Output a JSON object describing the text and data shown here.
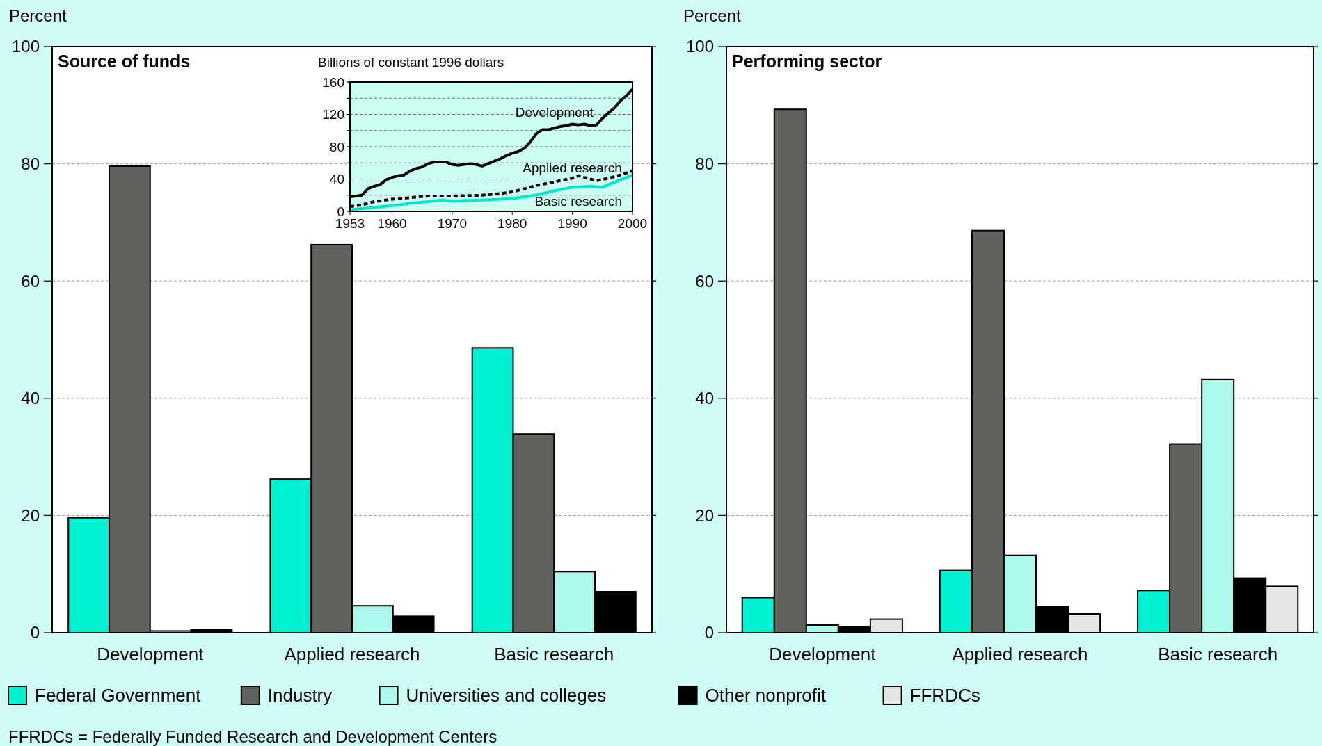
{
  "chart_data": [
    {
      "type": "bar",
      "title": "Source of funds",
      "ylabel": "Percent",
      "categories": [
        "Development",
        "Applied research",
        "Basic research"
      ],
      "ylim": [
        0,
        100
      ],
      "yticks": [
        0,
        20,
        40,
        60,
        80,
        100
      ],
      "grid": "y",
      "series": [
        {
          "color": "#00f0d2",
          "values": [
            19.6,
            26.2,
            48.6
          ]
        },
        {
          "color": "#60625e",
          "values": [
            79.6,
            66.2,
            33.9
          ]
        },
        {
          "color": "#adf8ec",
          "values": [
            0.3,
            4.6,
            10.4
          ]
        },
        {
          "color": "#000000",
          "values": [
            0.5,
            2.8,
            7.0
          ]
        }
      ],
      "annotations": [
        "FFRDCs = Federally Funded Research and Development Centers"
      ]
    },
    {
      "type": "line",
      "title": "Billions of constant 1996 dollars",
      "xlim": [
        1953,
        2000
      ],
      "xticks": [
        1953,
        1960,
        1970,
        1980,
        1990,
        2000
      ],
      "ylim": [
        0,
        160
      ],
      "yticks": [
        0,
        {
          "value": 20,
          "label": null
        },
        40,
        {
          "value": 60,
          "label": null
        },
        80,
        {
          "value": 100,
          "label": null
        },
        120,
        {
          "value": 140,
          "label": null
        },
        160
      ],
      "grid": "y",
      "series": [
        {
          "name": "Development",
          "color": "#000000",
          "line_style": "solid",
          "x": [
            1953,
            1955,
            1956,
            1957,
            1958,
            1959,
            1960,
            1961,
            1962,
            1963,
            1964,
            1965,
            1966,
            1967,
            1968,
            1969,
            1970,
            1971,
            1972,
            1973,
            1974,
            1975,
            1976,
            1977,
            1978,
            1979,
            1980,
            1981,
            1982,
            1983,
            1984,
            1985,
            1986,
            1987,
            1988,
            1989,
            1990,
            1991,
            1992,
            1993,
            1994,
            1995,
            1996,
            1997,
            1998,
            1999,
            2000
          ],
          "values": [
            18,
            20,
            28,
            31,
            33,
            39,
            42,
            44,
            45,
            50,
            53,
            55,
            59,
            61,
            61,
            61,
            58,
            57,
            58,
            59,
            58,
            56,
            59,
            62,
            65,
            69,
            72,
            74,
            78,
            86,
            96,
            101,
            101,
            103,
            105,
            106,
            108,
            107,
            108,
            106,
            107,
            115,
            122,
            128,
            137,
            143,
            151
          ]
        },
        {
          "name": "Applied research",
          "color": "#000000",
          "line_style": "dashed",
          "x": [
            1953,
            1955,
            1957,
            1960,
            1963,
            1966,
            1970,
            1975,
            1978,
            1980,
            1982,
            1984,
            1986,
            1988,
            1990,
            1991,
            1993,
            1994,
            1996,
            1998,
            2000
          ],
          "values": [
            6,
            8,
            12,
            15,
            17,
            19,
            19,
            20,
            22,
            24,
            28,
            32,
            35,
            38,
            41,
            44,
            40,
            38,
            41,
            45,
            50
          ]
        },
        {
          "name": "Basic research",
          "color": "#00e8c8",
          "line_style": "solid",
          "x": [
            1953,
            1956,
            1960,
            1963,
            1966,
            1968,
            1970,
            1975,
            1978,
            1980,
            1983,
            1985,
            1988,
            1990,
            1993,
            1995,
            1997,
            2000
          ],
          "values": [
            2,
            4,
            7,
            10,
            12,
            14,
            13,
            14,
            15,
            16,
            19,
            22,
            27,
            30,
            31,
            30,
            36,
            45
          ]
        }
      ]
    },
    {
      "type": "bar",
      "title": "Performing sector",
      "ylabel": "Percent",
      "categories": [
        "Development",
        "Applied research",
        "Basic research"
      ],
      "ylim": [
        0,
        100
      ],
      "yticks": [
        0,
        20,
        40,
        60,
        80,
        100
      ],
      "grid": "y",
      "legend": "bottom",
      "series": [
        {
          "name": "Federal Government",
          "color": "#00f0d2",
          "values": [
            6.0,
            10.6,
            7.2
          ]
        },
        {
          "name": "Industry",
          "color": "#60625e",
          "values": [
            89.3,
            68.6,
            32.2
          ]
        },
        {
          "name": "Universities and colleges",
          "color": "#adf8ec",
          "values": [
            1.3,
            13.2,
            43.2
          ]
        },
        {
          "name": "Other nonprofit",
          "color": "#000000",
          "values": [
            1.0,
            4.5,
            9.3
          ]
        },
        {
          "name": "FFRDCs",
          "color": "#e6e6e6",
          "values": [
            2.3,
            3.2,
            7.9
          ]
        }
      ]
    }
  ]
}
